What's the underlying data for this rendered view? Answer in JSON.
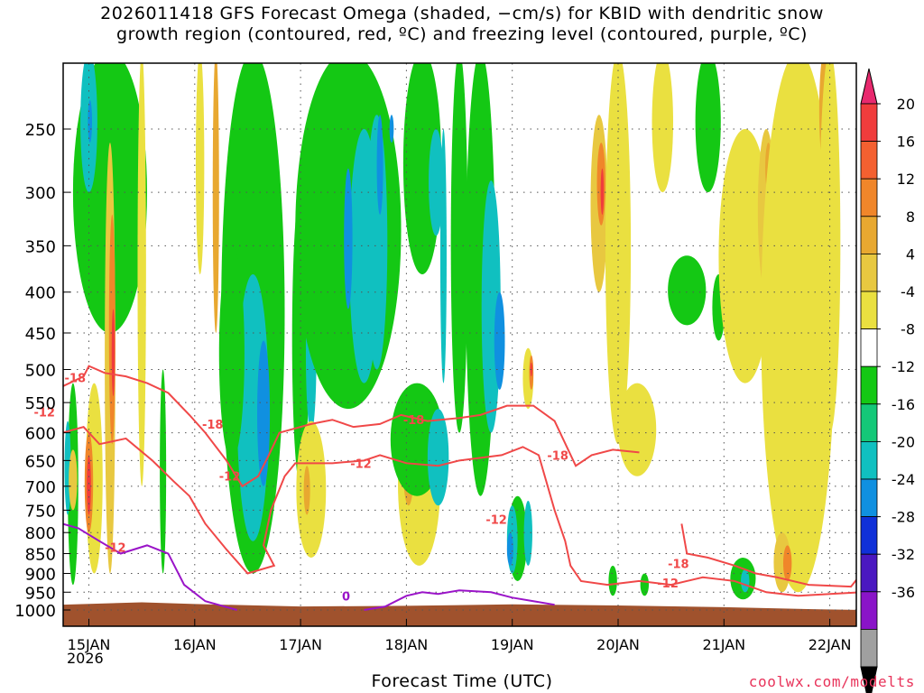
{
  "title_line1": "2026011418 GFS Forecast Omega (shaded, −cm/s) for KBID with dendritic snow",
  "title_line2": "growth region (contoured, red, ºC) and freezing level (contoured, purple, ºC)",
  "credit": "coolwx.com/modelts",
  "chart_data": {
    "type": "heatmap",
    "title": "2026011418 GFS Forecast Omega (shaded, −cm/s) for KBID with dendritic snow growth region (contoured, red, ºC) and freezing level (contoured, purple, ºC)",
    "xlabel": "Forecast Time (UTC)",
    "ylabel": "",
    "x_ticks": [
      "15JAN",
      "16JAN",
      "17JAN",
      "18JAN",
      "19JAN",
      "20JAN",
      "21JAN",
      "22JAN"
    ],
    "x_year_label": "2026",
    "y_ticks": [
      250,
      300,
      350,
      400,
      450,
      500,
      550,
      600,
      650,
      700,
      750,
      800,
      850,
      900,
      950,
      1000
    ],
    "y_scale": "log pressure (hPa), inverted",
    "grid": true,
    "colorbar": {
      "labels": [
        20,
        16,
        12,
        8,
        4,
        -4,
        -8,
        -12,
        -16,
        -20,
        -24,
        -28,
        -32,
        -36
      ],
      "colors": [
        "#e8296e",
        "#f03c3c",
        "#f46030",
        "#f0862a",
        "#e8a830",
        "#e8c840",
        "#eae040",
        "#ffffff",
        "#14c814",
        "#14c878",
        "#10c0c0",
        "#1090e0",
        "#1030d8",
        "#4a18c0",
        "#8a14c8",
        "#a0a0a0",
        "#000000"
      ]
    },
    "contours": [
      {
        "label": "-18",
        "color": "#f04848",
        "kind": "dendritic snow growth region"
      },
      {
        "label": "-12",
        "color": "#f04848",
        "kind": "dendritic snow growth region"
      },
      {
        "label": "0",
        "color": "#9a14c8",
        "kind": "freezing level"
      }
    ],
    "features": [
      {
        "label": "-18",
        "day": 0.62,
        "p": 512
      },
      {
        "label": "-12",
        "day": 0.33,
        "p": 565
      },
      {
        "label": "-18",
        "day": 1.92,
        "p": 585
      },
      {
        "label": "-12",
        "day": 2.08,
        "p": 680
      },
      {
        "label": "-12",
        "day": 1.0,
        "p": 835
      },
      {
        "label": "-12",
        "day": 3.32,
        "p": 655
      },
      {
        "label": "-18",
        "day": 3.82,
        "p": 578
      },
      {
        "label": "-12",
        "day": 4.6,
        "p": 770
      },
      {
        "label": "-18",
        "day": 5.18,
        "p": 640
      },
      {
        "label": "-18",
        "day": 6.32,
        "p": 875
      },
      {
        "label": "-12",
        "day": 6.22,
        "p": 925
      },
      {
        "label": "0",
        "day": 3.18,
        "p": 960
      }
    ]
  }
}
